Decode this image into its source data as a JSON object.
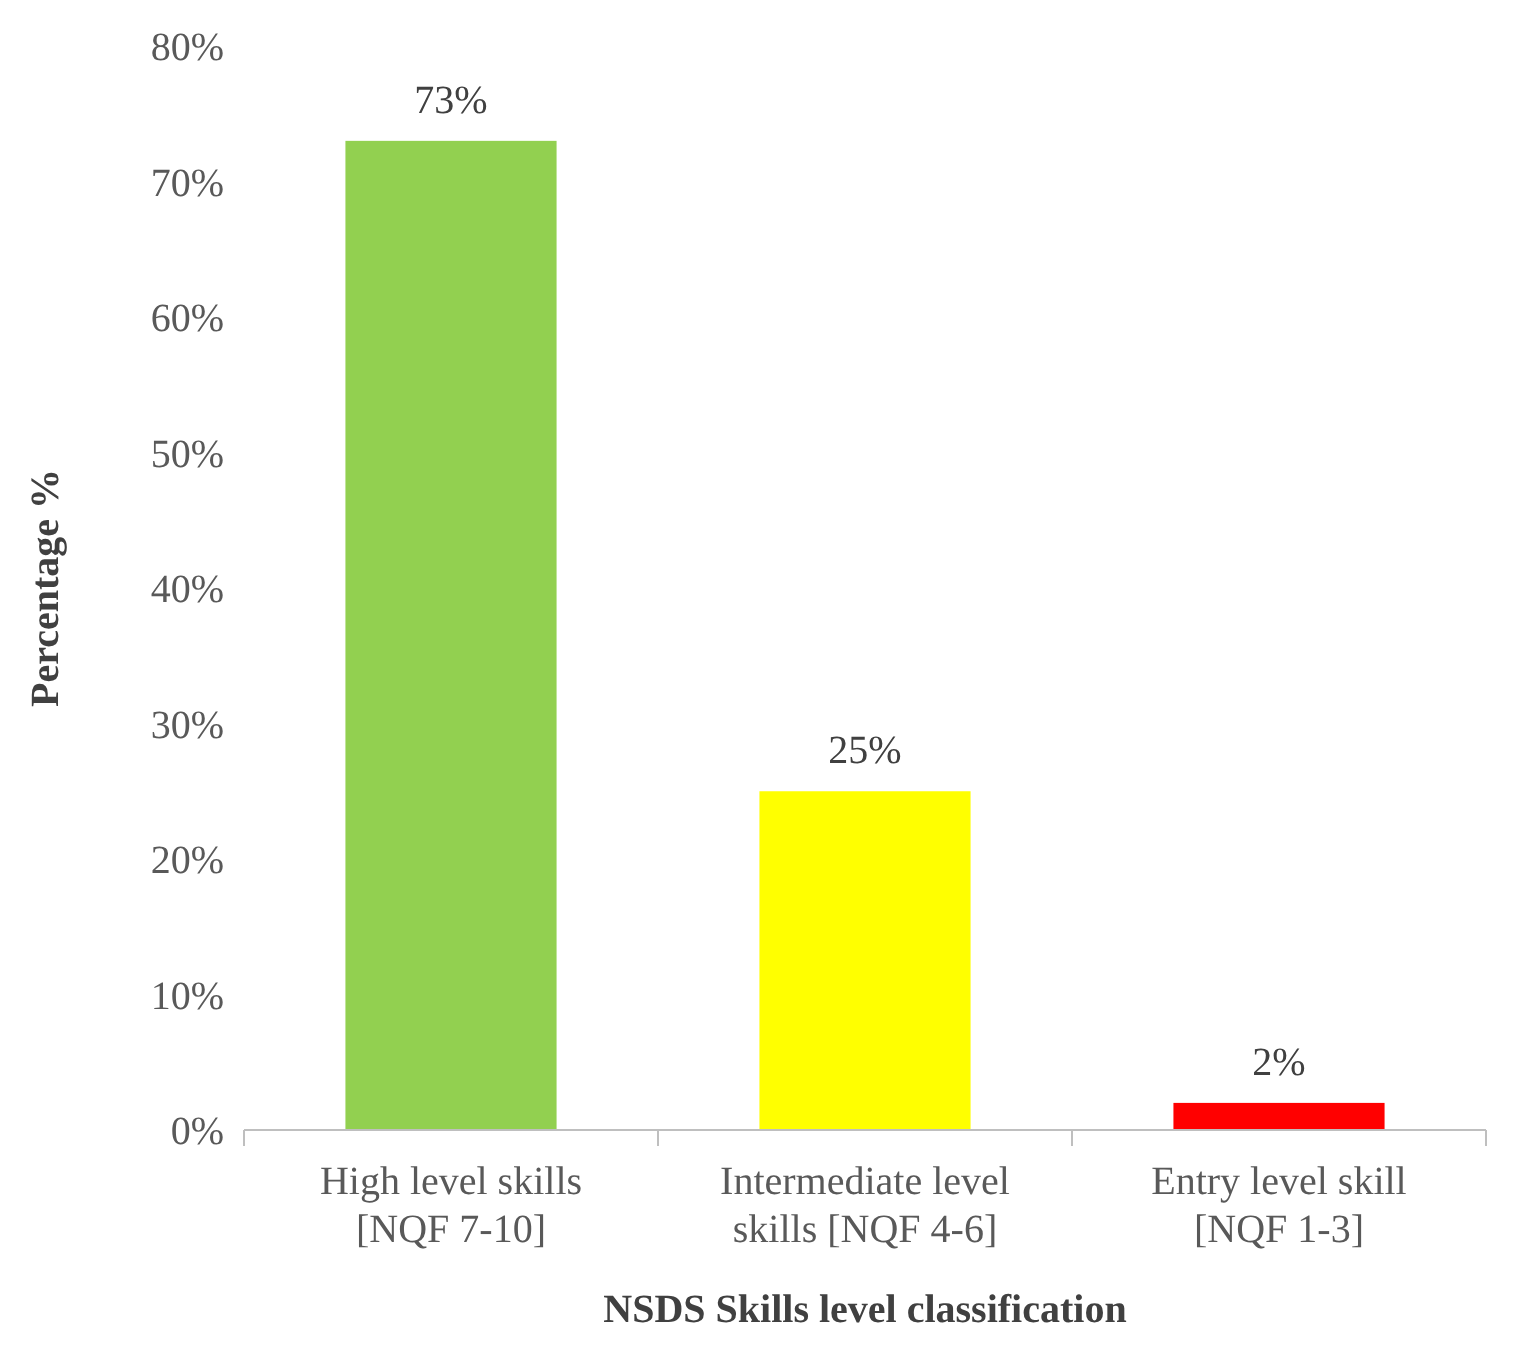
{
  "chart_data": {
    "type": "bar",
    "xlabel": "NSDS Skills level classification",
    "ylabel": "Percentage %",
    "categories": [
      "High level skills [NQF 7-10]",
      "Intermediate level skills [NQF 4-6]",
      "Entry level skill [NQF 1-3]"
    ],
    "values": [
      73,
      25,
      2
    ],
    "colors": [
      "#92d050",
      "#ffff00",
      "#ff0000"
    ],
    "value_labels": [
      "73%",
      "25%",
      "2%"
    ],
    "ylim": [
      0,
      80
    ],
    "yticks": [
      {
        "value": 0,
        "label": "0%"
      },
      {
        "value": 10,
        "label": "10%"
      },
      {
        "value": 20,
        "label": "20%"
      },
      {
        "value": 30,
        "label": "30%"
      },
      {
        "value": 40,
        "label": "40%"
      },
      {
        "value": 50,
        "label": "50%"
      },
      {
        "value": 60,
        "label": "60%"
      },
      {
        "value": 70,
        "label": "70%"
      },
      {
        "value": 80,
        "label": "80%"
      }
    ],
    "grid": false
  }
}
